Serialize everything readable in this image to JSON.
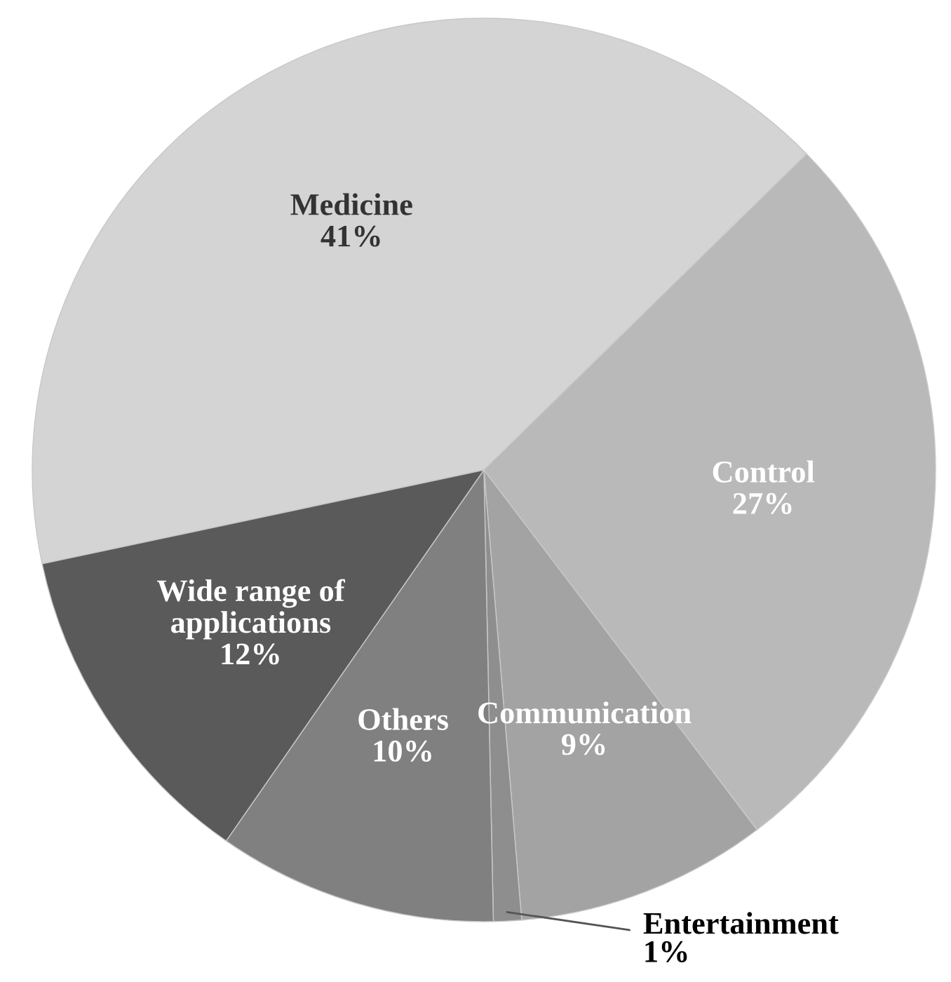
{
  "chart_data": {
    "type": "pie",
    "categories": [
      "Medicine",
      "Control",
      "Communication",
      "Entertainment",
      "Others",
      "Wide range of applications"
    ],
    "values": [
      41,
      27,
      9,
      1,
      10,
      12
    ],
    "value_labels": [
      "41%",
      "27%",
      "9%",
      "1%",
      "10%",
      "12%"
    ],
    "colors": [
      "#d4d4d4",
      "#b9b9b9",
      "#a3a3a3",
      "#8e8e8e",
      "#808080",
      "#5a5a5a"
    ]
  }
}
